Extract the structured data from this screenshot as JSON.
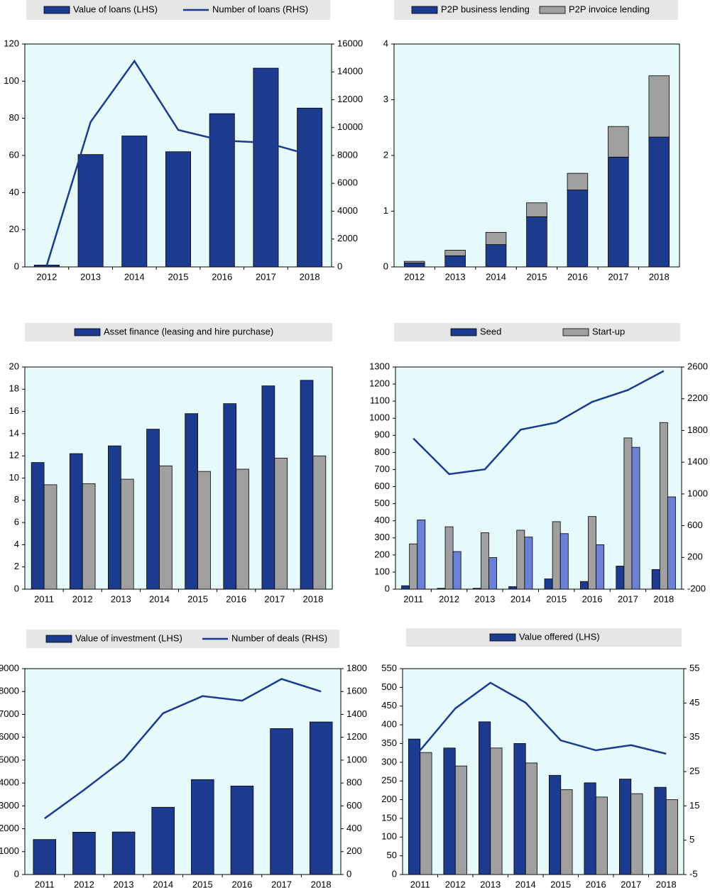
{
  "chart_data": [
    {
      "type": "bar_line",
      "categories": [
        "2012",
        "2013",
        "2014",
        "2015",
        "2016",
        "2017",
        "2018"
      ],
      "series": [
        {
          "name": "Value of loans (LHS)",
          "kind": "bar",
          "color": "#1d3b8e",
          "values": [
            1,
            60.5,
            70.5,
            62,
            82.5,
            107,
            85.5
          ]
        },
        {
          "name": "Number of loans (RHS)",
          "kind": "line",
          "axis": "y2",
          "color": "#1d3b8e",
          "values": [
            100,
            10400,
            14780,
            9830,
            9070,
            8920,
            8050
          ]
        }
      ],
      "ylim": [
        0,
        120
      ],
      "yticks": [
        0,
        20,
        40,
        60,
        80,
        100,
        120
      ],
      "y2lim": [
        0,
        16000
      ],
      "y2ticks": [
        0,
        2000,
        4000,
        6000,
        8000,
        10000,
        12000,
        14000,
        16000
      ]
    },
    {
      "type": "stacked_bar",
      "categories": [
        "2012",
        "2013",
        "2014",
        "2015",
        "2016",
        "2017",
        "2018"
      ],
      "series": [
        {
          "name": "P2P business lending",
          "kind": "bar",
          "color": "#1d3b8e",
          "values": [
            0.07,
            0.2,
            0.4,
            0.9,
            1.38,
            1.97,
            2.33
          ]
        },
        {
          "name": "P2P invoice lending",
          "kind": "bar",
          "color": "#a0a0a0",
          "values": [
            0.03,
            0.1,
            0.22,
            0.25,
            0.3,
            0.55,
            1.1
          ]
        }
      ],
      "ylim": [
        0,
        4
      ],
      "yticks": [
        0,
        1,
        2,
        3,
        4
      ]
    },
    {
      "type": "bar",
      "categories": [
        "2011",
        "2012",
        "2013",
        "2014",
        "2015",
        "2016",
        "2017",
        "2018"
      ],
      "series": [
        {
          "name": "Asset finance (leasing and hire purchase)",
          "kind": "bar",
          "color": "#1d3b8e",
          "values": [
            11.4,
            12.2,
            12.9,
            14.4,
            15.8,
            16.7,
            18.3,
            18.8
          ]
        },
        {
          "kind": "bar",
          "color": "#a0a0a0",
          "values": [
            9.4,
            9.5,
            9.9,
            11.1,
            10.6,
            10.8,
            11.8,
            12.0
          ]
        }
      ],
      "ylim": [
        0,
        20
      ],
      "yticks": [
        0,
        2,
        4,
        6,
        8,
        10,
        12,
        14,
        16,
        18,
        20
      ]
    },
    {
      "type": "bar_line",
      "categories": [
        "2011",
        "2012",
        "2013",
        "2014",
        "2015",
        "2016",
        "2017",
        "2018"
      ],
      "series": [
        {
          "name": "Seed",
          "kind": "bar",
          "color": "#1d3b8e",
          "values": [
            20,
            5,
            5,
            15,
            60,
            45,
            135,
            115
          ]
        },
        {
          "name": "Start-up",
          "kind": "bar",
          "color": "#a0a0a0",
          "values": [
            265,
            365,
            330,
            345,
            395,
            425,
            885,
            975
          ]
        },
        {
          "kind": "bar",
          "color": "#6b80d6",
          "values": [
            405,
            220,
            185,
            305,
            325,
            260,
            830,
            540
          ]
        },
        {
          "kind": "line",
          "axis": "y2",
          "color": "#1d3b8e",
          "values": [
            1700,
            1250,
            1310,
            1810,
            1900,
            2160,
            2310,
            2550
          ]
        }
      ],
      "ylim": [
        0,
        1300
      ],
      "yticks": [
        0,
        100,
        200,
        300,
        400,
        500,
        600,
        700,
        800,
        900,
        1000,
        1100,
        1200,
        1300
      ],
      "y2lim": [
        -200,
        2600
      ],
      "y2ticks": [
        -200,
        200,
        600,
        1000,
        1400,
        1800,
        2200,
        2600
      ]
    },
    {
      "type": "bar_line",
      "categories": [
        "2011",
        "2012",
        "2013",
        "2014",
        "2015",
        "2016",
        "2017",
        "2018"
      ],
      "series": [
        {
          "name": "Value of investment (LHS)",
          "kind": "bar",
          "color": "#1d3b8e",
          "values": [
            1530,
            1850,
            1860,
            2940,
            4150,
            3870,
            6380,
            6670
          ]
        },
        {
          "name": "Number of deals (RHS)",
          "kind": "line",
          "axis": "y2",
          "color": "#1d3b8e",
          "values": [
            490,
            740,
            1005,
            1410,
            1560,
            1520,
            1710,
            1600
          ]
        }
      ],
      "ylim": [
        0,
        9000
      ],
      "yticks": [
        0,
        1000,
        2000,
        3000,
        4000,
        5000,
        6000,
        7000,
        8000,
        9000
      ],
      "y2lim": [
        0,
        1800
      ],
      "y2ticks": [
        0,
        200,
        400,
        600,
        800,
        1000,
        1200,
        1400,
        1600,
        1800
      ]
    },
    {
      "type": "bar_line",
      "categories": [
        "2011",
        "2012",
        "2013",
        "2014",
        "2015",
        "2016",
        "2017",
        "2018"
      ],
      "series": [
        {
          "name": "Value offered (LHS)",
          "kind": "bar",
          "color": "#1d3b8e",
          "values": [
            362,
            338,
            408,
            350,
            265,
            245,
            255,
            233
          ]
        },
        {
          "kind": "bar",
          "color": "#a0a0a0",
          "values": [
            326,
            290,
            338,
            298,
            227,
            207,
            216,
            200
          ]
        },
        {
          "kind": "line",
          "axis": "y2",
          "color": "#1d3b8e",
          "values": [
            31.2,
            43.4,
            50.9,
            45.1,
            34.1,
            31.2,
            32.7,
            30.2
          ]
        }
      ],
      "ylim": [
        0,
        550
      ],
      "yticks": [
        0,
        50,
        100,
        150,
        200,
        250,
        300,
        350,
        400,
        450,
        500,
        550
      ],
      "y2lim": [
        -5,
        55
      ],
      "y2ticks": [
        -5,
        5,
        15,
        25,
        35,
        45,
        55
      ]
    }
  ]
}
